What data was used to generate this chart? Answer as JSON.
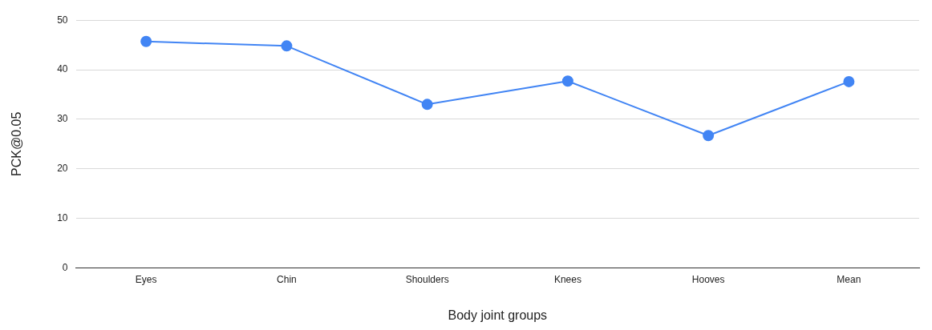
{
  "chart_data": {
    "type": "line",
    "xlabel": "Body joint groups",
    "ylabel": "PCK@0.05",
    "categories": [
      "Eyes",
      "Chin",
      "Shoulders",
      "Knees",
      "Hooves",
      "Mean"
    ],
    "series": [
      {
        "color": "#4285f4",
        "values": [
          45.7,
          44.8,
          33.0,
          37.7,
          26.7,
          37.6
        ]
      }
    ],
    "ylim": [
      0,
      50
    ],
    "yticks": [
      0,
      10,
      20,
      30,
      40,
      50
    ],
    "grid": "y",
    "legend": false,
    "marker": "circle",
    "line_style": "solid"
  }
}
